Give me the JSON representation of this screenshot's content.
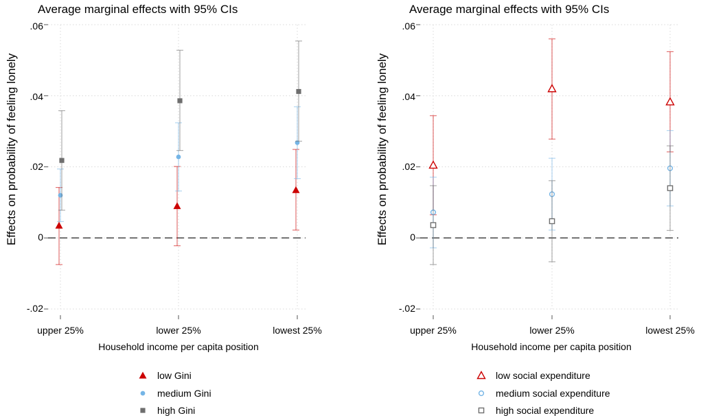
{
  "chart_data": [
    {
      "type": "scatter",
      "title": "Average marginal effects with 95% CIs",
      "xlabel": "Household income per capita position",
      "ylabel": "Effects on probability of feeling lonely",
      "categories": [
        "upper 25%",
        "lower 25%",
        "lowest 25%"
      ],
      "ylim": [
        -0.02,
        0.06
      ],
      "yticks": [
        -0.02,
        0,
        0.02,
        0.04,
        0.06
      ],
      "ytick_labels": [
        "-.02",
        "0",
        ".02",
        ".04",
        ".06"
      ],
      "grid": true,
      "reference_line": 0,
      "legend_position": "bottom",
      "series": [
        {
          "name": "low Gini",
          "marker": "triangle-filled",
          "color": "#cc0000",
          "values": [
            0.0035,
            0.009,
            0.0135
          ],
          "ci_low": [
            -0.0075,
            -0.0022,
            0.0022
          ],
          "ci_high": [
            0.0142,
            0.0201,
            0.0249
          ]
        },
        {
          "name": "medium Gini",
          "marker": "circle-filled",
          "color": "#75b5e6",
          "values": [
            0.012,
            0.0228,
            0.0268
          ],
          "ci_low": [
            0.0046,
            0.0132,
            0.0167
          ],
          "ci_high": [
            0.0194,
            0.0324,
            0.0369
          ]
        },
        {
          "name": "high Gini",
          "marker": "square-filled",
          "color": "#6e6e6e",
          "values": [
            0.0218,
            0.0386,
            0.0412
          ],
          "ci_low": [
            0.0078,
            0.0246,
            0.0272
          ],
          "ci_high": [
            0.0358,
            0.0528,
            0.0554
          ]
        }
      ]
    },
    {
      "type": "scatter",
      "title": "Average marginal effects with 95% CIs",
      "xlabel": "Household income per capita position",
      "ylabel": "Effects on probability of feeling lonely",
      "categories": [
        "upper 25%",
        "lower 25%",
        "lowest 25%"
      ],
      "ylim": [
        -0.02,
        0.06
      ],
      "yticks": [
        -0.02,
        0,
        0.02,
        0.04,
        0.06
      ],
      "ytick_labels": [
        "-.02",
        "0",
        ".02",
        ".04",
        ".06"
      ],
      "grid": true,
      "reference_line": 0,
      "legend_position": "bottom",
      "series": [
        {
          "name": "low social expenditure",
          "marker": "triangle-open",
          "color": "#cc0000",
          "values": [
            0.0205,
            0.042,
            0.0383
          ],
          "ci_low": [
            0.0065,
            0.0278,
            0.0242
          ],
          "ci_high": [
            0.0344,
            0.056,
            0.0524
          ]
        },
        {
          "name": "medium social expenditure",
          "marker": "circle-open",
          "color": "#75b5e6",
          "values": [
            0.0072,
            0.0123,
            0.0196
          ],
          "ci_low": [
            -0.0028,
            0.0022,
            0.009
          ],
          "ci_high": [
            0.0171,
            0.0224,
            0.0302
          ]
        },
        {
          "name": "high social expenditure",
          "marker": "square-open",
          "color": "#6e6e6e",
          "values": [
            0.0036,
            0.0047,
            0.014
          ],
          "ci_low": [
            -0.0075,
            -0.0067,
            0.0021
          ],
          "ci_high": [
            0.0147,
            0.0161,
            0.0259
          ]
        }
      ]
    }
  ]
}
